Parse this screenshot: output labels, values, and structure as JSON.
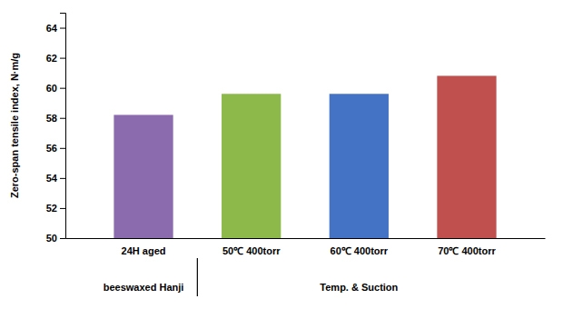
{
  "chart_data": {
    "type": "bar",
    "categories": [
      "24H aged",
      "50℃ 400torr",
      "60℃ 400torr",
      "70℃ 400torr"
    ],
    "values": [
      58.2,
      59.6,
      59.6,
      60.8
    ],
    "colors": [
      "#8B6AAE",
      "#8DB84A",
      "#4472C4",
      "#C0504D"
    ],
    "groups": [
      {
        "label": "beeswaxed Hanji",
        "categories": [
          "24H aged"
        ]
      },
      {
        "label": "Temp. & Suction",
        "categories": [
          "50℃ 400torr",
          "60℃ 400torr",
          "70℃ 400torr"
        ]
      }
    ],
    "ylabel": "Zero-span tensile index, N·m/g",
    "ylim": [
      50,
      65
    ],
    "yticks": [
      50,
      52,
      54,
      56,
      58,
      60,
      62,
      64
    ],
    "grid": false
  }
}
